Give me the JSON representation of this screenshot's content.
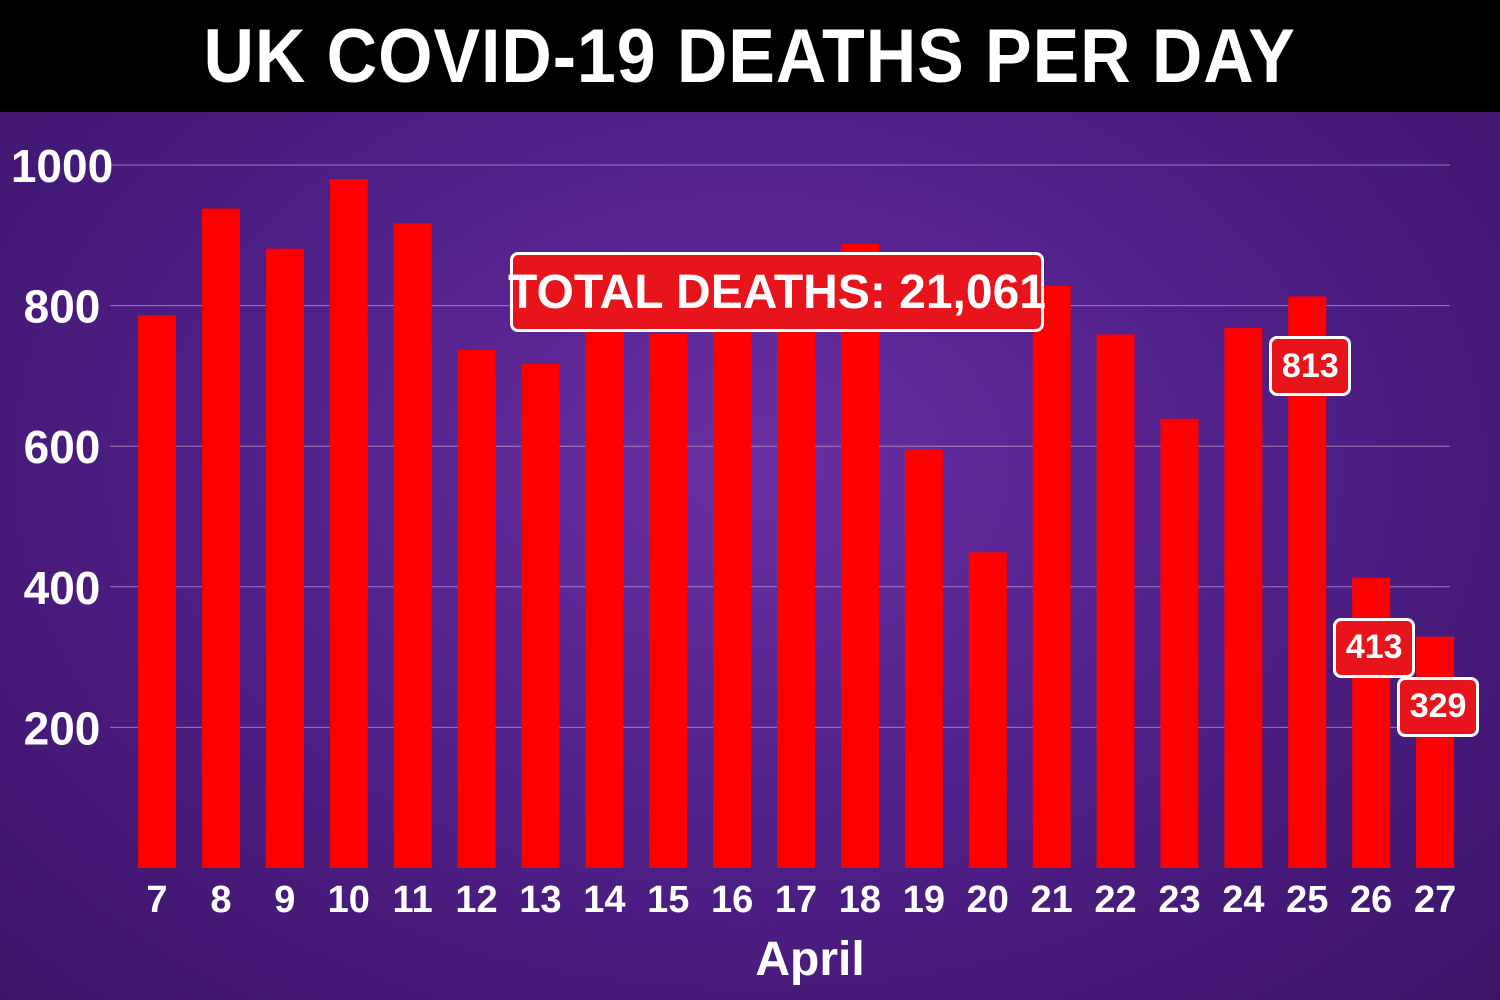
{
  "title": "UK COVID-19 DEATHS PER DAY",
  "total_label": "TOTAL DEATHS: 21,061",
  "colors": {
    "bar": "#ff0000",
    "grid": "#b9a4d6",
    "text": "#ffffff",
    "callout": "#e8141c"
  },
  "chart_data": {
    "type": "bar",
    "title": "UK COVID-19 DEATHS PER DAY",
    "xlabel": "April",
    "ylabel": "",
    "categories": [
      "7",
      "8",
      "9",
      "10",
      "11",
      "12",
      "13",
      "14",
      "15",
      "16",
      "17",
      "18",
      "19",
      "20",
      "21",
      "22",
      "23",
      "24",
      "25",
      "26",
      "27"
    ],
    "values": [
      786,
      938,
      881,
      980,
      917,
      737,
      717,
      778,
      761,
      861,
      847,
      888,
      596,
      449,
      828,
      759,
      639,
      768,
      813,
      413,
      329
    ],
    "yticks": [
      200,
      400,
      600,
      800,
      1000
    ],
    "ylim": [
      0,
      1000
    ],
    "grid": true,
    "data_labels": [
      {
        "category": "25",
        "text": "813"
      },
      {
        "category": "26",
        "text": "413"
      },
      {
        "category": "27",
        "text": "329"
      }
    ]
  }
}
